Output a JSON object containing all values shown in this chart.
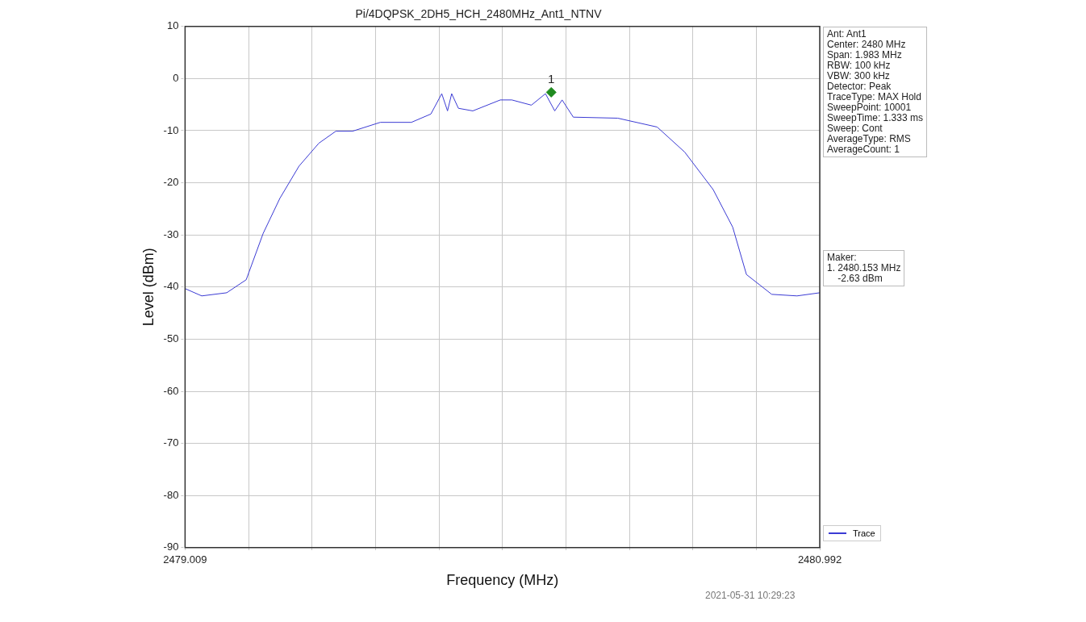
{
  "chart_data": {
    "type": "line",
    "title": "Pi/4DQPSK_2DH5_HCH_2480MHz_Ant1_NTNV",
    "xlabel": "Frequency (MHz)",
    "ylabel": "Level (dBm)",
    "xlim": [
      2479.009,
      2480.992
    ],
    "xticks": [
      2479.009,
      {
        "value": 2479.2073,
        "label": null
      },
      {
        "value": 2479.4056,
        "label": null
      },
      {
        "value": 2479.6039,
        "label": null
      },
      {
        "value": 2479.8022,
        "label": null
      },
      {
        "value": 2480.0005,
        "label": null
      },
      {
        "value": 2480.1988,
        "label": null
      },
      {
        "value": 2480.3971,
        "label": null
      },
      {
        "value": 2480.5954,
        "label": null
      },
      {
        "value": 2480.7937,
        "label": null
      },
      2480.992
    ],
    "ylim": [
      -90,
      10
    ],
    "yticks": [
      -90,
      -80,
      -70,
      -60,
      -50,
      -40,
      -30,
      -20,
      -10,
      0,
      10
    ],
    "grid": true,
    "legend": "bottom right",
    "marker": "none",
    "line_style": "solid",
    "series": [
      {
        "name": "Trace",
        "color": "#3b3bd4",
        "x": [
          2479.009,
          2479.061,
          2479.139,
          2479.2,
          2479.253,
          2479.305,
          2479.365,
          2479.427,
          2479.48,
          2479.532,
          2479.619,
          2479.716,
          2479.777,
          2479.811,
          2479.829,
          2479.842,
          2479.863,
          2479.908,
          2479.994,
          2480.03,
          2480.091,
          2480.135,
          2480.164,
          2480.187,
          2480.222,
          2480.361,
          2480.484,
          2480.57,
          2480.659,
          2480.72,
          2480.763,
          2480.842,
          2480.921,
          2480.992
        ],
        "values": [
          -40.3,
          -41.7,
          -41.1,
          -38.6,
          -29.7,
          -23,
          -16.8,
          -12.4,
          -10.1,
          -10.1,
          -8.4,
          -8.4,
          -6.8,
          -2.9,
          -6.2,
          -2.9,
          -5.7,
          -6.2,
          -4.1,
          -4.1,
          -5.1,
          -2.9,
          -6.2,
          -4.1,
          -7.4,
          -7.6,
          -9.3,
          -14.1,
          -21.3,
          -28.5,
          -37.6,
          -41.4,
          -41.7,
          -41.1
        ]
      },
      {
        "type": "scatter",
        "color": "#1f8a1f",
        "marker": "diamond",
        "x": [
          2480.153
        ],
        "values": [
          -2.63
        ]
      }
    ],
    "annotations": [
      {
        "text": "1",
        "x": 2480.153,
        "y": -2.63
      },
      "Ant: Ant1\nCenter: 2480 MHz\nSpan: 1.983 MHz\nRBW: 100 kHz\nVBW: 300 kHz\nDetector: Peak\nTraceType: MAX Hold\nSweepPoint: 10001\nSweepTime: 1.333 ms\nSweep: Cont\nAverageType: RMS\nAverageCount: 1",
      "Maker:\n1. 2480.153 MHz\n    -2.63 dBm",
      "2021-05-31 10:29:23"
    ]
  }
}
